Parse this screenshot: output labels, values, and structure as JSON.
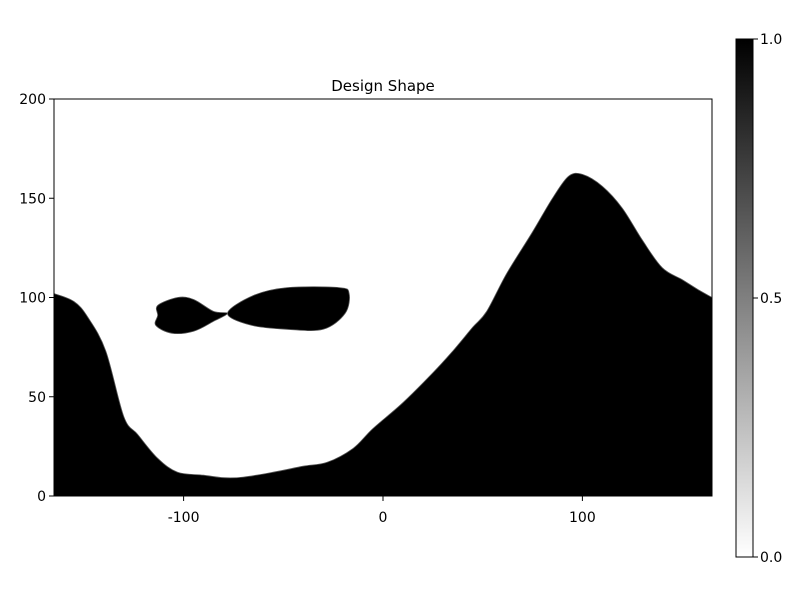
{
  "chart_data": {
    "type": "heatmap",
    "title": "Design Shape",
    "xlabel": "",
    "ylabel": "",
    "xlim": [
      -165,
      165
    ],
    "ylim": [
      0,
      200
    ],
    "x_ticks": [
      -100,
      0,
      100
    ],
    "x_tick_labels": [
      "-100",
      "0",
      "100"
    ],
    "y_ticks": [
      0,
      50,
      100,
      150,
      200
    ],
    "y_tick_labels": [
      "0",
      "50",
      "100",
      "150",
      "200"
    ],
    "grid": false,
    "colormap": {
      "low_color": "#ffffff",
      "high_color": "#000000"
    },
    "colorbar": {
      "range": [
        0.0,
        1.0
      ],
      "ticks": [
        0.0,
        0.5,
        1.0
      ],
      "tick_labels": [
        "0.0",
        "0.5",
        "1.0"
      ]
    },
    "regions": [
      {
        "name": "ground",
        "value": 1.0,
        "boundary": [
          [
            -165,
            102
          ],
          [
            -155,
            98
          ],
          [
            -148,
            90
          ],
          [
            -139,
            73
          ],
          [
            -130,
            40
          ],
          [
            -123,
            31
          ],
          [
            -113,
            19
          ],
          [
            -103,
            12
          ],
          [
            -90,
            10.5
          ],
          [
            -80,
            9.2
          ],
          [
            -70,
            9.5
          ],
          [
            -55,
            12
          ],
          [
            -40,
            15
          ],
          [
            -28,
            17
          ],
          [
            -15,
            24
          ],
          [
            -5,
            34
          ],
          [
            10,
            47
          ],
          [
            25,
            62
          ],
          [
            35,
            73
          ],
          [
            45,
            85
          ],
          [
            52,
            93
          ],
          [
            62,
            112
          ],
          [
            75,
            133
          ],
          [
            85,
            150
          ],
          [
            93,
            161
          ],
          [
            100,
            162
          ],
          [
            110,
            156
          ],
          [
            120,
            145
          ],
          [
            130,
            129
          ],
          [
            140,
            115
          ],
          [
            150,
            109
          ],
          [
            158,
            104
          ],
          [
            165,
            100
          ]
        ]
      },
      {
        "name": "floating-hole-left",
        "value": 1.0,
        "boundary": [
          [
            -113,
            96
          ],
          [
            -103,
            100
          ],
          [
            -95,
            99
          ],
          [
            -85,
            93
          ],
          [
            -78,
            92
          ],
          [
            -85,
            88
          ],
          [
            -95,
            83
          ],
          [
            -106,
            82
          ],
          [
            -114,
            86
          ],
          [
            -113,
            91
          ]
        ]
      },
      {
        "name": "floating-hole-right",
        "value": 1.0,
        "boundary": [
          [
            -78,
            92
          ],
          [
            -65,
            101
          ],
          [
            -48,
            105
          ],
          [
            -22,
            105
          ],
          [
            -17,
            102
          ],
          [
            -19,
            92
          ],
          [
            -30,
            84
          ],
          [
            -48,
            84
          ],
          [
            -66,
            86
          ]
        ]
      }
    ]
  }
}
